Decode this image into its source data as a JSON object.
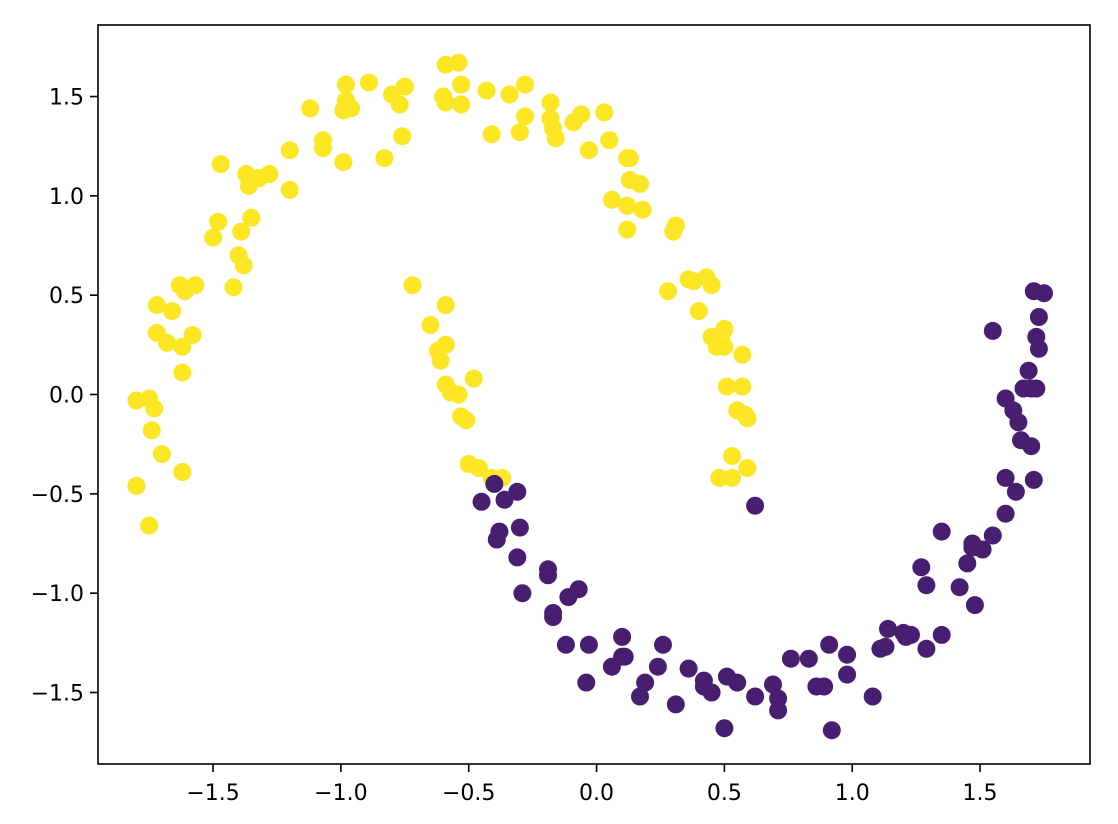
{
  "chart_data": {
    "type": "scatter",
    "title": "",
    "xlabel": "",
    "ylabel": "",
    "xlim": [
      -1.95,
      1.93
    ],
    "ylim": [
      -1.86,
      1.86
    ],
    "xticks": [
      -1.5,
      -1.0,
      -0.5,
      0.0,
      0.5,
      1.0,
      1.5
    ],
    "yticks": [
      -1.5,
      -1.0,
      -0.5,
      0.0,
      0.5,
      1.0,
      1.5
    ],
    "xtick_labels": [
      "−1.5",
      "−1.0",
      "−0.5",
      "0.0",
      "0.5",
      "1.0",
      "1.5"
    ],
    "ytick_labels": [
      "−1.5",
      "−1.0",
      "−0.5",
      "0.0",
      "0.5",
      "1.0",
      "1.5"
    ],
    "grid": false,
    "legend": "none",
    "series": [
      {
        "color": "#fde725",
        "points": [
          [
            -1.8,
            -0.03
          ],
          [
            -1.75,
            -0.02
          ],
          [
            -1.73,
            -0.07
          ],
          [
            -1.74,
            -0.18
          ],
          [
            -1.7,
            -0.3
          ],
          [
            -1.8,
            -0.46
          ],
          [
            -1.75,
            -0.66
          ],
          [
            -1.62,
            -0.39
          ],
          [
            -1.72,
            0.31
          ],
          [
            -1.68,
            0.26
          ],
          [
            -1.62,
            0.24
          ],
          [
            -1.58,
            0.3
          ],
          [
            -1.62,
            0.11
          ],
          [
            -1.72,
            0.45
          ],
          [
            -1.66,
            0.42
          ],
          [
            -1.63,
            0.55
          ],
          [
            -1.61,
            0.52
          ],
          [
            -1.57,
            0.55
          ],
          [
            -1.5,
            0.79
          ],
          [
            -1.48,
            0.87
          ],
          [
            -1.42,
            0.54
          ],
          [
            -1.4,
            0.7
          ],
          [
            -1.39,
            0.82
          ],
          [
            -1.38,
            0.65
          ],
          [
            -1.35,
            0.89
          ],
          [
            -1.36,
            1.05
          ],
          [
            -1.37,
            1.11
          ],
          [
            -1.32,
            1.09
          ],
          [
            -1.28,
            1.11
          ],
          [
            -1.47,
            1.16
          ],
          [
            -1.2,
            1.03
          ],
          [
            -1.2,
            1.23
          ],
          [
            -1.12,
            1.44
          ],
          [
            -1.07,
            1.24
          ],
          [
            -1.07,
            1.28
          ],
          [
            -0.99,
            1.17
          ],
          [
            -0.99,
            1.43
          ],
          [
            -0.98,
            1.48
          ],
          [
            -0.96,
            1.44
          ],
          [
            -0.98,
            1.56
          ],
          [
            -0.89,
            1.57
          ],
          [
            -0.83,
            1.19
          ],
          [
            -0.8,
            1.51
          ],
          [
            -0.77,
            1.46
          ],
          [
            -0.76,
            1.3
          ],
          [
            -0.75,
            1.55
          ],
          [
            -0.6,
            1.5
          ],
          [
            -0.59,
            1.47
          ],
          [
            -0.59,
            1.66
          ],
          [
            -0.54,
            1.67
          ],
          [
            -0.53,
            1.56
          ],
          [
            -0.53,
            1.46
          ],
          [
            -0.43,
            1.53
          ],
          [
            -0.41,
            1.31
          ],
          [
            -0.34,
            1.51
          ],
          [
            -0.3,
            1.32
          ],
          [
            -0.28,
            1.4
          ],
          [
            -0.28,
            1.56
          ],
          [
            -0.18,
            1.47
          ],
          [
            -0.18,
            1.39
          ],
          [
            -0.17,
            1.34
          ],
          [
            -0.16,
            1.29
          ],
          [
            -0.09,
            1.37
          ],
          [
            -0.06,
            1.41
          ],
          [
            -0.03,
            1.23
          ],
          [
            0.03,
            1.42
          ],
          [
            0.05,
            1.28
          ],
          [
            0.06,
            0.98
          ],
          [
            0.12,
            0.95
          ],
          [
            0.12,
            1.19
          ],
          [
            0.13,
            1.19
          ],
          [
            0.13,
            1.08
          ],
          [
            0.17,
            1.06
          ],
          [
            0.18,
            0.93
          ],
          [
            0.12,
            0.83
          ],
          [
            0.3,
            0.82
          ],
          [
            0.31,
            0.85
          ],
          [
            0.28,
            0.52
          ],
          [
            0.36,
            0.58
          ],
          [
            0.38,
            0.57
          ],
          [
            0.4,
            0.42
          ],
          [
            0.43,
            0.59
          ],
          [
            0.45,
            0.55
          ],
          [
            0.45,
            0.29
          ],
          [
            0.47,
            0.24
          ],
          [
            0.48,
            0.27
          ],
          [
            0.49,
            0.3
          ],
          [
            0.5,
            0.33
          ],
          [
            0.5,
            0.24
          ],
          [
            0.51,
            0.04
          ],
          [
            0.57,
            0.2
          ],
          [
            0.57,
            0.04
          ],
          [
            0.55,
            -0.08
          ],
          [
            0.58,
            -0.1
          ],
          [
            0.59,
            -0.12
          ],
          [
            0.53,
            -0.31
          ],
          [
            0.59,
            -0.37
          ],
          [
            0.48,
            -0.42
          ],
          [
            0.53,
            -0.42
          ],
          [
            -0.72,
            0.55
          ],
          [
            -0.59,
            0.45
          ],
          [
            -0.65,
            0.35
          ],
          [
            -0.59,
            0.25
          ],
          [
            -0.62,
            0.22
          ],
          [
            -0.61,
            0.17
          ],
          [
            -0.59,
            0.05
          ],
          [
            -0.57,
            0.01
          ],
          [
            -0.54,
            0.0
          ],
          [
            -0.48,
            0.08
          ],
          [
            -0.53,
            -0.11
          ],
          [
            -0.51,
            -0.13
          ],
          [
            -0.5,
            -0.35
          ],
          [
            -0.46,
            -0.37
          ],
          [
            -0.41,
            -0.42
          ],
          [
            -0.37,
            -0.42
          ]
        ]
      },
      {
        "color": "#481f70",
        "points": [
          [
            -0.4,
            -0.45
          ],
          [
            -0.45,
            -0.54
          ],
          [
            -0.36,
            -0.53
          ],
          [
            -0.31,
            -0.49
          ],
          [
            -0.38,
            -0.69
          ],
          [
            -0.39,
            -0.73
          ],
          [
            -0.3,
            -0.67
          ],
          [
            -0.31,
            -0.82
          ],
          [
            -0.29,
            -1.0
          ],
          [
            -0.19,
            -0.88
          ],
          [
            -0.19,
            -0.91
          ],
          [
            -0.17,
            -1.1
          ],
          [
            -0.17,
            -1.12
          ],
          [
            -0.11,
            -1.02
          ],
          [
            -0.07,
            -0.98
          ],
          [
            -0.12,
            -1.26
          ],
          [
            -0.03,
            -1.26
          ],
          [
            -0.04,
            -1.45
          ],
          [
            0.06,
            -1.37
          ],
          [
            0.1,
            -1.32
          ],
          [
            0.1,
            -1.22
          ],
          [
            0.11,
            -1.32
          ],
          [
            0.17,
            -1.52
          ],
          [
            0.19,
            -1.45
          ],
          [
            0.24,
            -1.37
          ],
          [
            0.26,
            -1.26
          ],
          [
            0.31,
            -1.56
          ],
          [
            0.36,
            -1.38
          ],
          [
            0.42,
            -1.44
          ],
          [
            0.42,
            -1.47
          ],
          [
            0.45,
            -1.5
          ],
          [
            0.51,
            -1.42
          ],
          [
            0.55,
            -1.45
          ],
          [
            0.5,
            -1.68
          ],
          [
            0.62,
            -0.56
          ],
          [
            0.62,
            -1.52
          ],
          [
            0.69,
            -1.46
          ],
          [
            0.71,
            -1.53
          ],
          [
            0.71,
            -1.59
          ],
          [
            0.76,
            -1.33
          ],
          [
            0.83,
            -1.33
          ],
          [
            0.86,
            -1.47
          ],
          [
            0.89,
            -1.47
          ],
          [
            0.91,
            -1.26
          ],
          [
            0.92,
            -1.69
          ],
          [
            0.98,
            -1.31
          ],
          [
            0.98,
            -1.41
          ],
          [
            1.08,
            -1.52
          ],
          [
            1.11,
            -1.28
          ],
          [
            1.13,
            -1.27
          ],
          [
            1.14,
            -1.18
          ],
          [
            1.2,
            -1.2
          ],
          [
            1.21,
            -1.22
          ],
          [
            1.23,
            -1.21
          ],
          [
            1.27,
            -0.87
          ],
          [
            1.29,
            -0.96
          ],
          [
            1.29,
            -1.28
          ],
          [
            1.35,
            -0.69
          ],
          [
            1.35,
            -1.21
          ],
          [
            1.42,
            -0.97
          ],
          [
            1.45,
            -0.85
          ],
          [
            1.47,
            -0.75
          ],
          [
            1.47,
            -0.77
          ],
          [
            1.48,
            -1.06
          ],
          [
            1.51,
            -0.78
          ],
          [
            1.55,
            -0.71
          ],
          [
            1.55,
            0.32
          ],
          [
            1.6,
            -0.02
          ],
          [
            1.6,
            -0.42
          ],
          [
            1.6,
            -0.6
          ],
          [
            1.63,
            -0.08
          ],
          [
            1.64,
            -0.49
          ],
          [
            1.65,
            -0.14
          ],
          [
            1.66,
            -0.23
          ],
          [
            1.67,
            0.03
          ],
          [
            1.69,
            0.12
          ],
          [
            1.7,
            0.03
          ],
          [
            1.7,
            -0.26
          ],
          [
            1.71,
            0.52
          ],
          [
            1.71,
            -0.43
          ],
          [
            1.72,
            0.29
          ],
          [
            1.72,
            0.03
          ],
          [
            1.73,
            0.39
          ],
          [
            1.73,
            0.23
          ],
          [
            1.75,
            0.51
          ]
        ]
      }
    ]
  }
}
